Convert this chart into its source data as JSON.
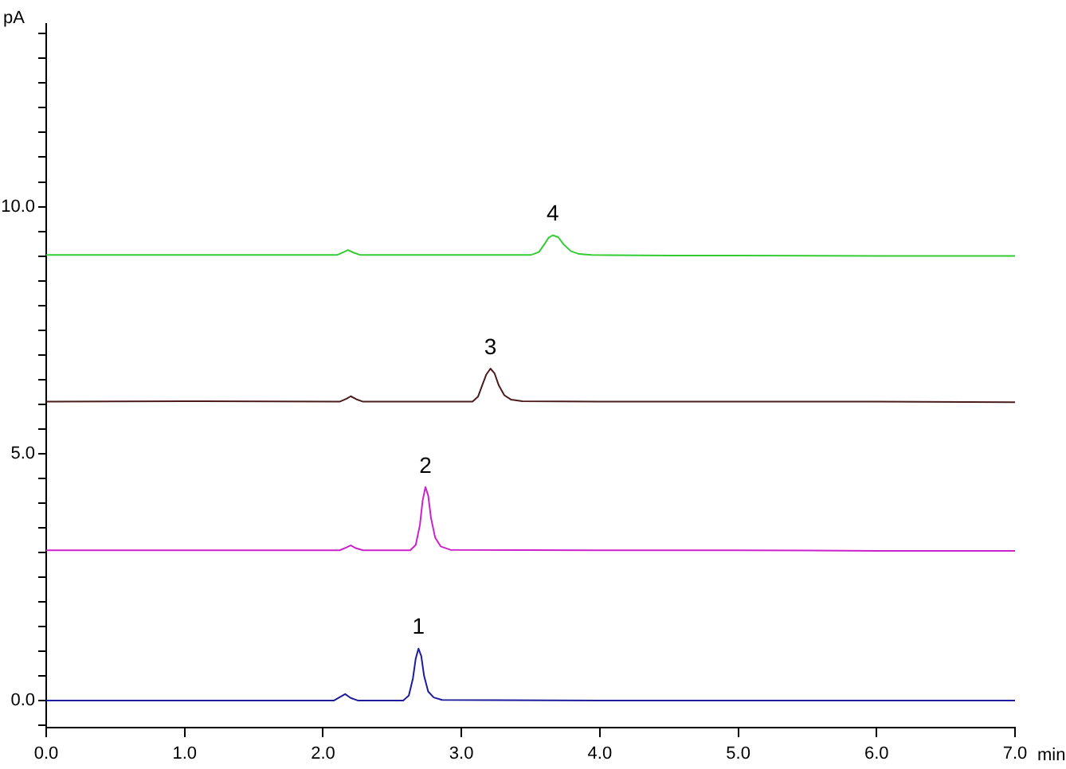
{
  "chart_data": {
    "type": "line",
    "xlabel": "min",
    "ylabel": "pA",
    "marker": "none",
    "line_style": "solid",
    "xlim": [
      0,
      7
    ],
    "xticks": [
      {
        "value": 0,
        "label": "0.0"
      },
      {
        "value": 1,
        "label": "1.0"
      },
      {
        "value": 2,
        "label": "2.0"
      },
      {
        "value": 3,
        "label": "3.0"
      },
      {
        "value": 4,
        "label": "4.0"
      },
      {
        "value": 5,
        "label": "5.0"
      },
      {
        "value": 6,
        "label": "6.0"
      },
      {
        "value": 7,
        "label": "7.0"
      }
    ],
    "ylim": [
      -0.55,
      13.7
    ],
    "yticks": [
      {
        "value": -0.5,
        "label": null
      },
      {
        "value": 0,
        "label": "0.0"
      },
      {
        "value": 0.5,
        "label": null
      },
      {
        "value": 1,
        "label": null
      },
      {
        "value": 1.5,
        "label": null
      },
      {
        "value": 2,
        "label": null
      },
      {
        "value": 2.5,
        "label": null
      },
      {
        "value": 3,
        "label": null
      },
      {
        "value": 3.5,
        "label": null
      },
      {
        "value": 4,
        "label": null
      },
      {
        "value": 4.5,
        "label": null
      },
      {
        "value": 5,
        "label": "5.0"
      },
      {
        "value": 5.5,
        "label": null
      },
      {
        "value": 6,
        "label": null
      },
      {
        "value": 6.5,
        "label": null
      },
      {
        "value": 7,
        "label": null
      },
      {
        "value": 7.5,
        "label": null
      },
      {
        "value": 8,
        "label": null
      },
      {
        "value": 8.5,
        "label": null
      },
      {
        "value": 9,
        "label": null
      },
      {
        "value": 9.5,
        "label": null
      },
      {
        "value": 10,
        "label": "10.0"
      },
      {
        "value": 10.5,
        "label": null
      },
      {
        "value": 11,
        "label": null
      },
      {
        "value": 11.5,
        "label": null
      },
      {
        "value": 12,
        "label": null
      },
      {
        "value": 12.5,
        "label": null
      },
      {
        "value": 13,
        "label": null
      },
      {
        "value": 13.5,
        "label": null
      }
    ],
    "series": [
      {
        "color": "#1c1c9c",
        "x": [
          0,
          1,
          2.08,
          2.13,
          2.16,
          2.2,
          2.25,
          2.58,
          2.62,
          2.65,
          2.67,
          2.69,
          2.71,
          2.73,
          2.76,
          2.8,
          2.86,
          4,
          5,
          6,
          7
        ],
        "values": [
          0,
          0,
          0,
          0.08,
          0.13,
          0.05,
          0,
          0,
          0.1,
          0.45,
          0.85,
          1.05,
          0.9,
          0.5,
          0.18,
          0.06,
          0.01,
          0,
          0,
          0,
          0
        ]
      },
      {
        "color": "#cc22cc",
        "x": [
          0,
          1,
          2.12,
          2.17,
          2.2,
          2.24,
          2.29,
          2.63,
          2.67,
          2.7,
          2.72,
          2.74,
          2.76,
          2.78,
          2.81,
          2.85,
          2.92,
          4,
          5,
          6,
          7
        ],
        "values": [
          3.04,
          3.04,
          3.04,
          3.1,
          3.14,
          3.08,
          3.04,
          3.04,
          3.15,
          3.55,
          4.05,
          4.32,
          4.15,
          3.7,
          3.3,
          3.12,
          3.05,
          3.04,
          3.04,
          3.03,
          3.03
        ]
      },
      {
        "color": "#4a1c1c",
        "x": [
          0,
          1,
          2.12,
          2.17,
          2.2,
          2.24,
          2.29,
          3.08,
          3.12,
          3.15,
          3.18,
          3.21,
          3.24,
          3.27,
          3.31,
          3.36,
          3.44,
          4,
          5,
          6,
          7
        ],
        "values": [
          6.05,
          6.06,
          6.05,
          6.11,
          6.16,
          6.1,
          6.05,
          6.05,
          6.15,
          6.38,
          6.6,
          6.72,
          6.62,
          6.38,
          6.18,
          6.09,
          6.06,
          6.05,
          6.05,
          6.05,
          6.04
        ]
      },
      {
        "color": "#33cc33",
        "x": [
          0,
          1,
          2.1,
          2.15,
          2.18,
          2.22,
          2.27,
          3.5,
          3.56,
          3.6,
          3.63,
          3.66,
          3.7,
          3.74,
          3.79,
          3.85,
          3.94,
          4.5,
          5,
          6,
          7
        ],
        "values": [
          9.02,
          9.02,
          9.02,
          9.08,
          9.12,
          9.07,
          9.02,
          9.02,
          9.08,
          9.24,
          9.37,
          9.42,
          9.38,
          9.23,
          9.1,
          9.04,
          9.02,
          9.01,
          9.01,
          9.0,
          9.0
        ]
      }
    ],
    "annotations": [
      {
        "text": "1",
        "x": 2.69,
        "y": 1.05
      },
      {
        "text": "2",
        "x": 2.74,
        "y": 4.32
      },
      {
        "text": "3",
        "x": 3.21,
        "y": 6.72
      },
      {
        "text": "4",
        "x": 3.66,
        "y": 9.42
      }
    ]
  }
}
